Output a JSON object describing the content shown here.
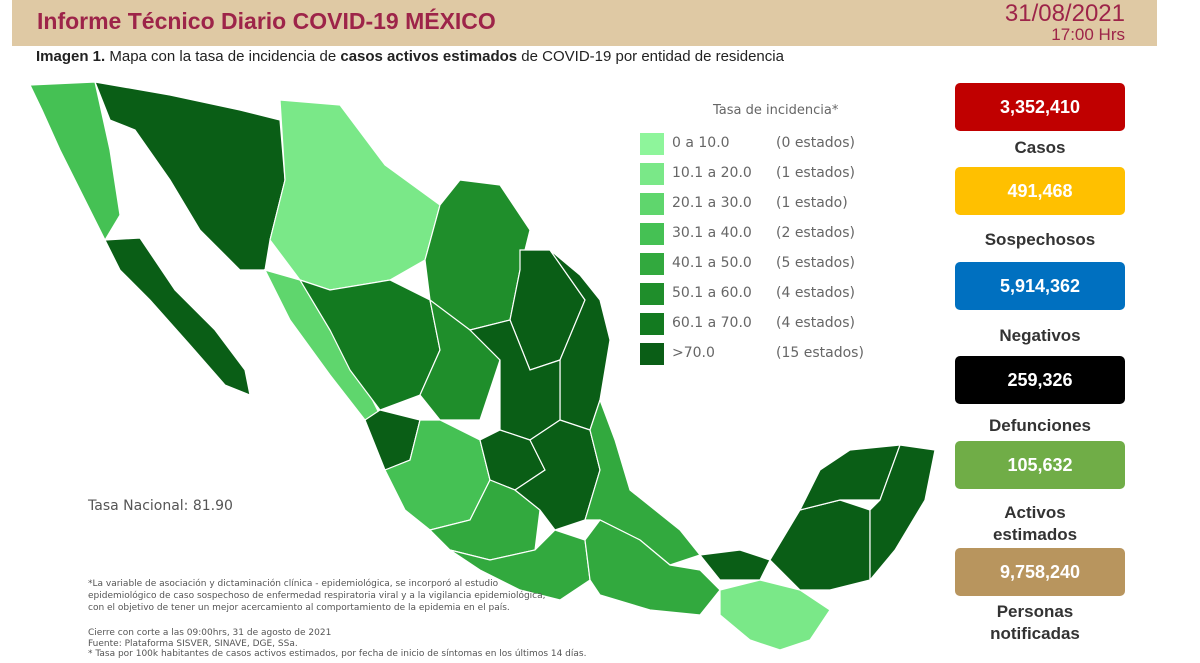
{
  "header": {
    "title": "Informe Técnico Diario COVID-19 MÉXICO",
    "date": "31/08/2021",
    "time": "17:00 Hrs"
  },
  "subtitle": {
    "prefix": "Imagen 1.",
    "part1": " Mapa con la tasa de incidencia de ",
    "bold": "casos activos estimados",
    "part2": " de COVID-19 por entidad de residencia"
  },
  "legend": {
    "title": "Tasa de incidencia*",
    "items": [
      {
        "range": "0   a  10.0",
        "count": "(0 estados)",
        "color": "#8ef59b"
      },
      {
        "range": "10.1 a  20.0",
        "count": "(1 estados)",
        "color": "#7ae888"
      },
      {
        "range": "20.1 a  30.0",
        "count": "(1 estado)",
        "color": "#5fd66d"
      },
      {
        "range": "30.1 a  40.0",
        "count": "(2 estados)",
        "color": "#45c154"
      },
      {
        "range": "40.1 a  50.0",
        "count": "(5 estados)",
        "color": "#32a93e"
      },
      {
        "range": "50.1 a  60.0",
        "count": "(4 estados)",
        "color": "#1f8e2b"
      },
      {
        "range": "60.1 a  70.0",
        "count": "(4 estados)",
        "color": "#137a20"
      },
      {
        "range": ">70.0",
        "count": "(15 estados)",
        "color": "#0a5e16"
      }
    ]
  },
  "tasa_nacional": "Tasa Nacional: 81.90",
  "notes": [
    "*La variable de asociación y dictaminación clínica - epidemiológica, se incorporó al estudio",
    "epidemiológico de caso sospechoso de enfermedad respiratoria viral y a la vigilancia epidemiológica,",
    "con el objetivo de tener un mejor acercamiento al comportamiento de la epidemia en el país."
  ],
  "source": [
    "Cierre con corte a las 09:00hrs, 31 de agosto de 2021",
    "Fuente: Plataforma SISVER, SINAVE, DGE, SSa.",
    "* Tasa por 100k habitantes de casos activos estimados, por fecha de inicio de síntomas en los últimos 14 días."
  ],
  "stats": [
    {
      "value": "3,352,410",
      "label": "Casos",
      "color": "#c00000"
    },
    {
      "value": "491,468",
      "label": "Sospechosos",
      "color": "#ffc000"
    },
    {
      "value": "5,914,362",
      "label": "Negativos",
      "color": "#0070c0"
    },
    {
      "value": "259,326",
      "label": "Defunciones",
      "color": "#000000"
    },
    {
      "value": "105,632",
      "label": "Activos estimados",
      "color": "#70ad47"
    },
    {
      "value": "9,758,240",
      "label": "Personas notificadas",
      "color": "#b8955e"
    }
  ]
}
